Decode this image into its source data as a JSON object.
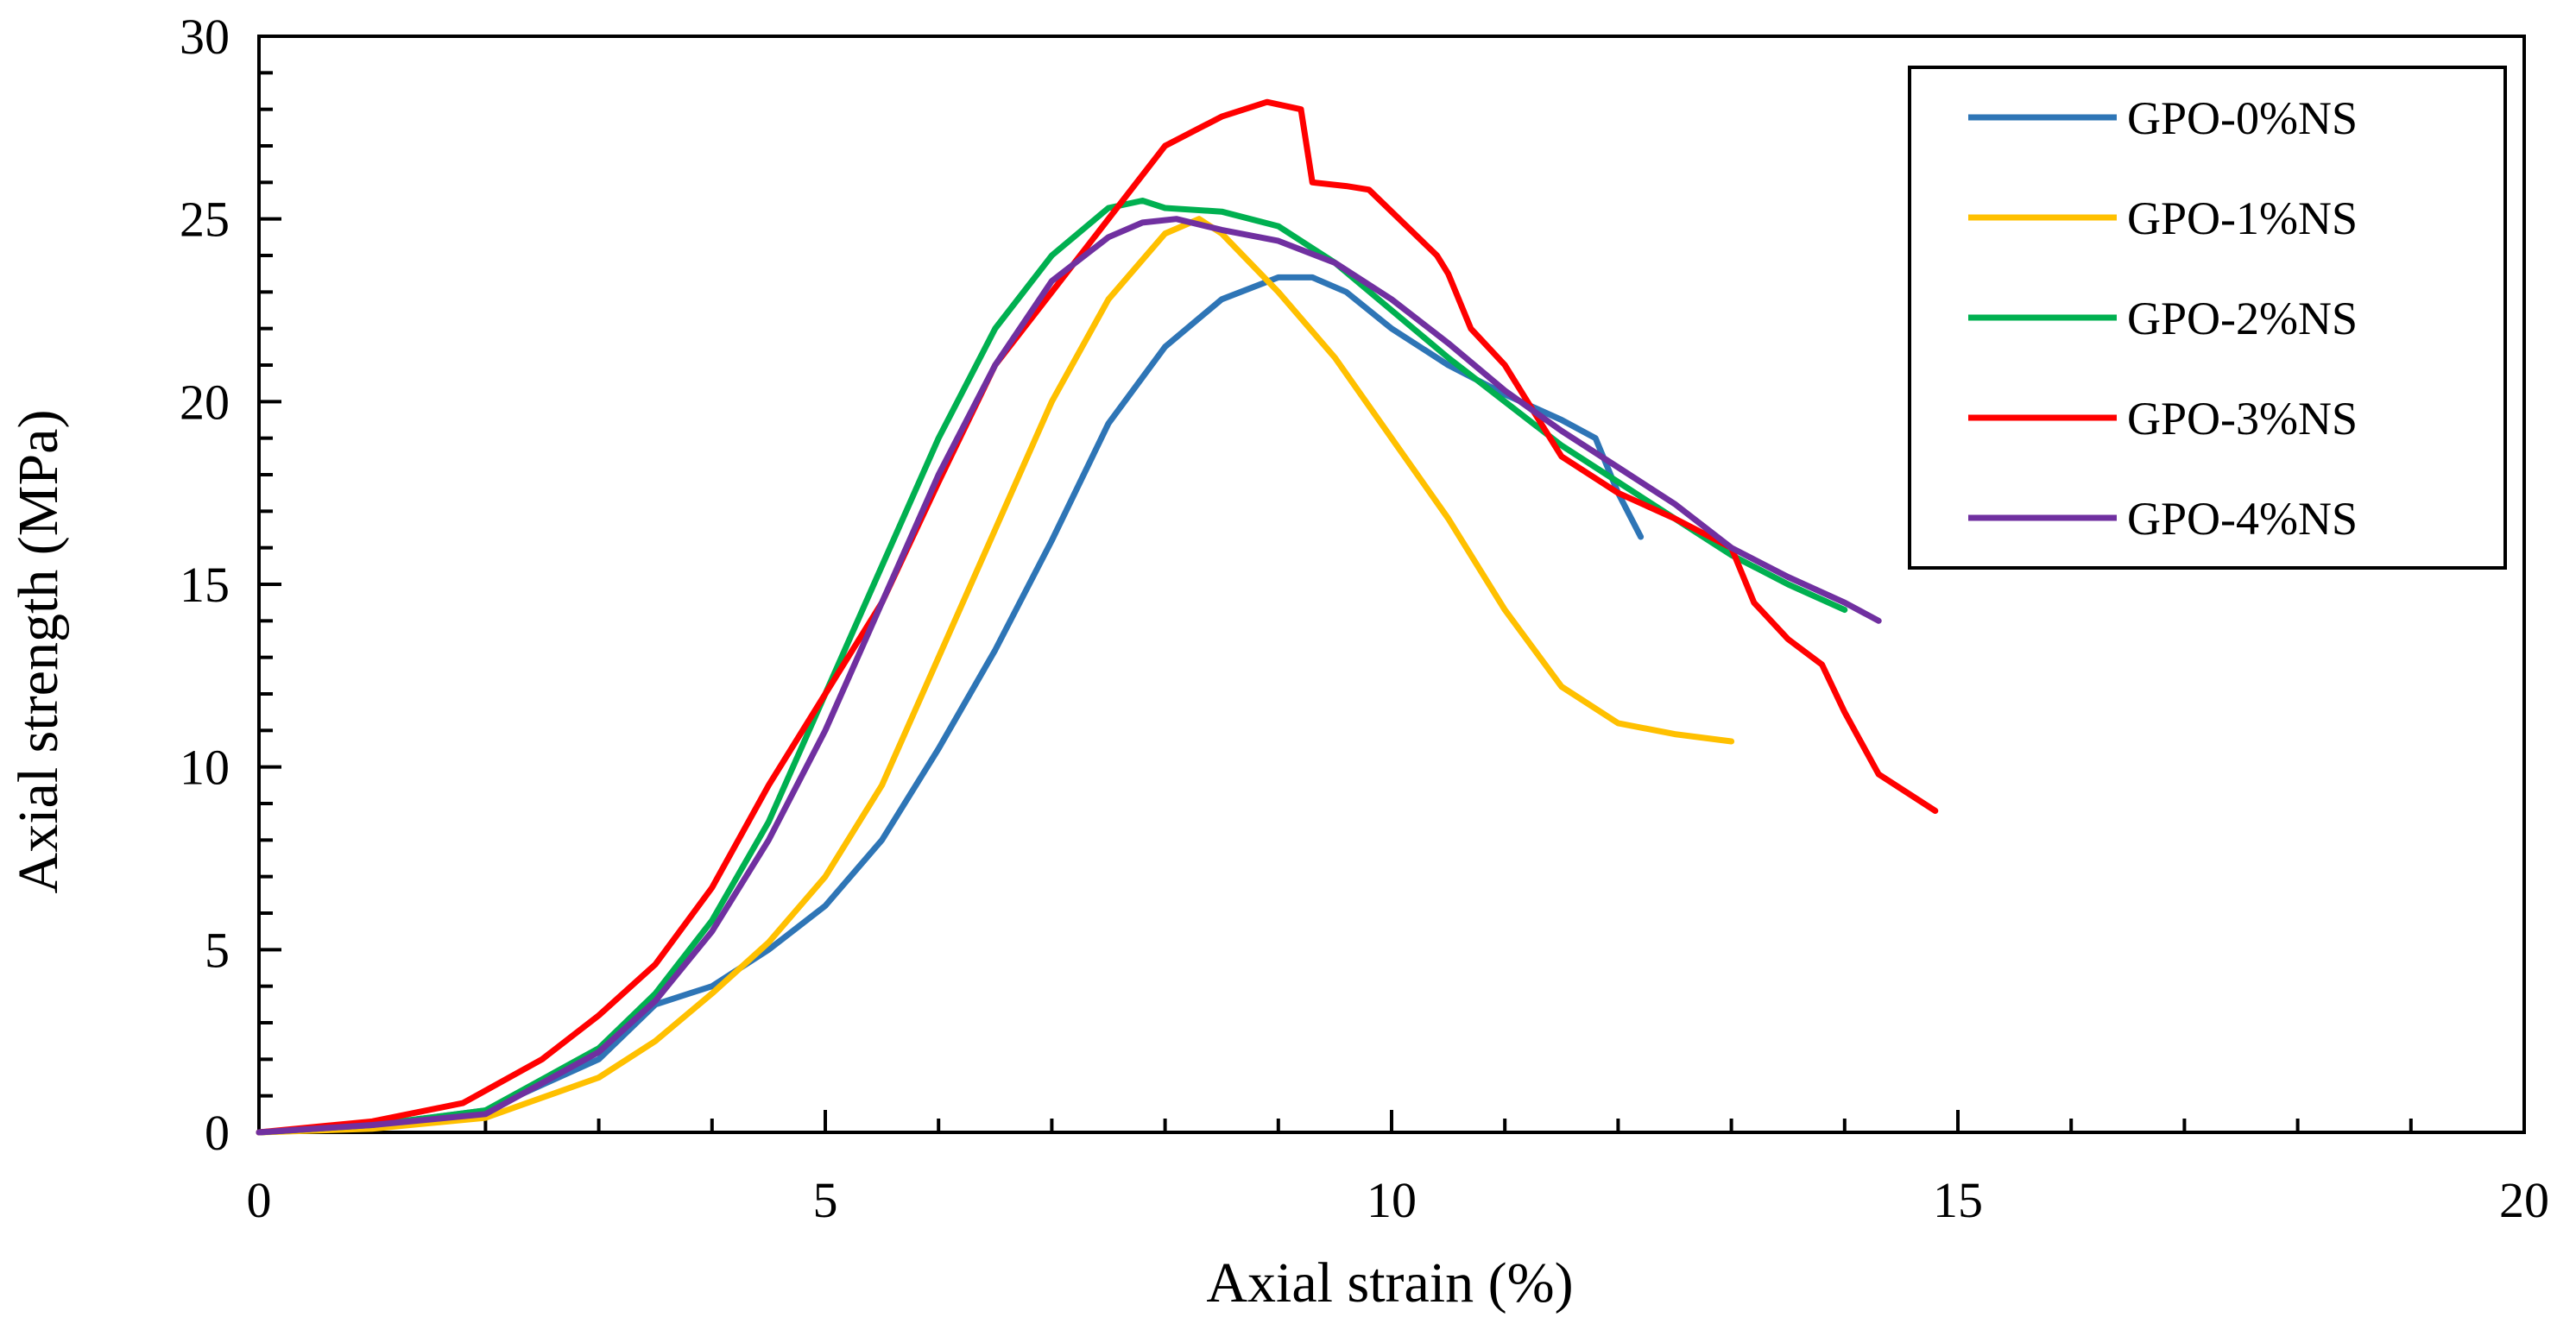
{
  "chart_data": {
    "type": "line",
    "title": "",
    "xlabel": "Axial strain (%)",
    "ylabel": "Axial strength (MPa)",
    "xlim": [
      0,
      20
    ],
    "ylim": [
      0,
      30
    ],
    "x_ticks": [
      0,
      5,
      10,
      15,
      20
    ],
    "y_ticks": [
      0,
      5,
      10,
      15,
      20,
      25,
      30
    ],
    "x_tick_labels": [
      "0",
      "5",
      "10",
      "15",
      "20"
    ],
    "y_tick_labels": [
      "0",
      "5",
      "10",
      "15",
      "20",
      "25",
      "30"
    ],
    "grid": false,
    "legend_position": "top-right",
    "series": [
      {
        "name": "GPO-0%NS",
        "color": "#2E75B6",
        "x": [
          0,
          1,
          2,
          3,
          3.5,
          3.8,
          4,
          4.5,
          5,
          5.5,
          6,
          6.5,
          7,
          7.5,
          8,
          8.5,
          9,
          9.3,
          9.6,
          10,
          10.5,
          11,
          11.5,
          11.8,
          12,
          12.2
        ],
        "y": [
          0,
          0.2,
          0.6,
          2.0,
          3.5,
          3.8,
          4.0,
          5.0,
          6.2,
          8.0,
          10.5,
          13.2,
          16.2,
          19.4,
          21.5,
          22.8,
          23.4,
          23.4,
          23.0,
          22.0,
          21.0,
          20.2,
          19.5,
          19.0,
          17.5,
          16.3
        ]
      },
      {
        "name": "GPO-1%NS",
        "color": "#FFC000",
        "x": [
          0,
          1,
          2,
          3,
          3.5,
          4,
          4.5,
          5,
          5.5,
          6,
          6.5,
          7,
          7.5,
          8,
          8.3,
          8.5,
          9,
          9.5,
          10,
          10.5,
          11,
          11.5,
          12,
          12.5,
          13
        ],
        "y": [
          0,
          0.1,
          0.4,
          1.5,
          2.5,
          3.8,
          5.2,
          7.0,
          9.5,
          13.0,
          16.5,
          20.0,
          22.8,
          24.6,
          25.0,
          24.6,
          23.0,
          21.2,
          19.0,
          16.8,
          14.3,
          12.2,
          11.2,
          10.9,
          10.7
        ]
      },
      {
        "name": "GPO-2%NS",
        "color": "#00B050",
        "x": [
          0,
          1,
          2,
          3,
          3.5,
          4,
          4.5,
          5,
          5.5,
          6,
          6.5,
          7,
          7.5,
          7.8,
          8,
          8.5,
          9,
          9.5,
          10,
          10.5,
          11,
          11.5,
          12,
          12.5,
          13,
          13.5,
          14
        ],
        "y": [
          0,
          0.2,
          0.6,
          2.3,
          3.8,
          5.8,
          8.5,
          12.0,
          15.5,
          19.0,
          22.0,
          24.0,
          25.3,
          25.5,
          25.3,
          25.2,
          24.8,
          23.8,
          22.5,
          21.2,
          20.0,
          18.8,
          17.8,
          16.8,
          15.8,
          15.0,
          14.3
        ]
      },
      {
        "name": "GPO-3%NS",
        "color": "#FF0000",
        "x": [
          0,
          1,
          1.8,
          2.5,
          3,
          3.5,
          4,
          4.5,
          5,
          5.5,
          6,
          6.5,
          7,
          7.5,
          8,
          8.5,
          8.9,
          9.2,
          9.3,
          9.6,
          9.8,
          10,
          10.4,
          10.5,
          10.7,
          11,
          11.2,
          11.5,
          12,
          12.5,
          13,
          13.2,
          13.5,
          13.8,
          14,
          14.3,
          14.8
        ],
        "y": [
          0,
          0.3,
          0.8,
          2.0,
          3.2,
          4.6,
          6.7,
          9.5,
          12.0,
          14.5,
          17.8,
          21.0,
          23.0,
          25.0,
          27.0,
          27.8,
          28.2,
          28.0,
          26.0,
          25.9,
          25.8,
          25.2,
          24.0,
          23.5,
          22.0,
          21.0,
          20.0,
          18.5,
          17.5,
          16.8,
          16.0,
          14.5,
          13.5,
          12.8,
          11.5,
          9.8,
          8.8
        ]
      },
      {
        "name": "GPO-4%NS",
        "color": "#7030A0",
        "x": [
          0,
          1,
          2,
          3,
          3.5,
          4,
          4.5,
          5,
          5.5,
          6,
          6.5,
          7,
          7.5,
          7.8,
          8.1,
          8.5,
          9,
          9.5,
          10,
          10.5,
          11,
          11.5,
          12,
          12.5,
          13,
          13.5,
          14,
          14.3
        ],
        "y": [
          0,
          0.2,
          0.5,
          2.2,
          3.6,
          5.5,
          8.0,
          11.0,
          14.5,
          18.0,
          21.0,
          23.3,
          24.5,
          24.9,
          25.0,
          24.7,
          24.4,
          23.8,
          22.8,
          21.6,
          20.3,
          19.2,
          18.2,
          17.2,
          16.0,
          15.2,
          14.5,
          14.0
        ]
      }
    ]
  }
}
